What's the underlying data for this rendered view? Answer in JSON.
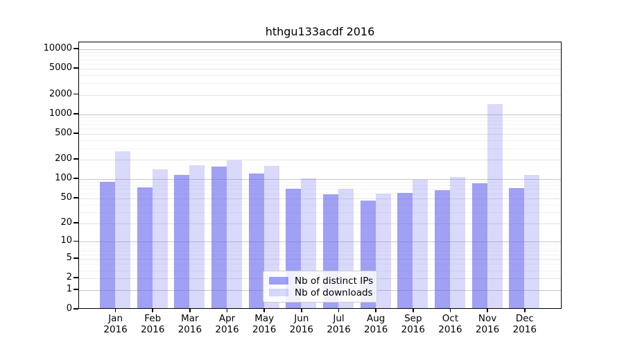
{
  "title": "hthgu133acdf 2016",
  "chart_data": {
    "type": "bar",
    "title": "hthgu133acdf 2016",
    "scale": "log1p",
    "categories": [
      {
        "month": "Jan",
        "year": "2016"
      },
      {
        "month": "Feb",
        "year": "2016"
      },
      {
        "month": "Mar",
        "year": "2016"
      },
      {
        "month": "Apr",
        "year": "2016"
      },
      {
        "month": "May",
        "year": "2016"
      },
      {
        "month": "Jun",
        "year": "2016"
      },
      {
        "month": "Jul",
        "year": "2016"
      },
      {
        "month": "Aug",
        "year": "2016"
      },
      {
        "month": "Sep",
        "year": "2016"
      },
      {
        "month": "Oct",
        "year": "2016"
      },
      {
        "month": "Nov",
        "year": "2016"
      },
      {
        "month": "Dec",
        "year": "2016"
      }
    ],
    "series": [
      {
        "name": "Nb of distinct IPs",
        "color": "#a4a4f0",
        "alpha": 0.62,
        "values": [
          91,
          75,
          116,
          155,
          121,
          70,
          58,
          46,
          61,
          68,
          86,
          73
        ]
      },
      {
        "name": "Nb of downloads",
        "color": "#d9d9f8",
        "alpha": 0.25,
        "values": [
          268,
          142,
          165,
          197,
          160,
          102,
          71,
          60,
          98,
          107,
          1430,
          116
        ]
      }
    ],
    "bar_base_color": "#6666ee",
    "yticks": [
      10000,
      5000,
      2000,
      1000,
      500,
      200,
      100,
      50,
      20,
      10,
      5,
      2,
      1,
      0
    ],
    "decade_ticks": [
      1,
      10,
      100,
      1000,
      10000
    ],
    "minor_multiples": [
      3,
      4,
      6,
      7,
      8,
      9
    ],
    "ylim": [
      0,
      13000
    ],
    "grid": true,
    "legend_position": "lower center",
    "colors": {
      "grid_major": "#c6c6c6",
      "grid_labeled": "#e3e3e3",
      "grid_minor": "#f2f2f2",
      "axis": "#000000",
      "background": "#ffffff"
    }
  }
}
